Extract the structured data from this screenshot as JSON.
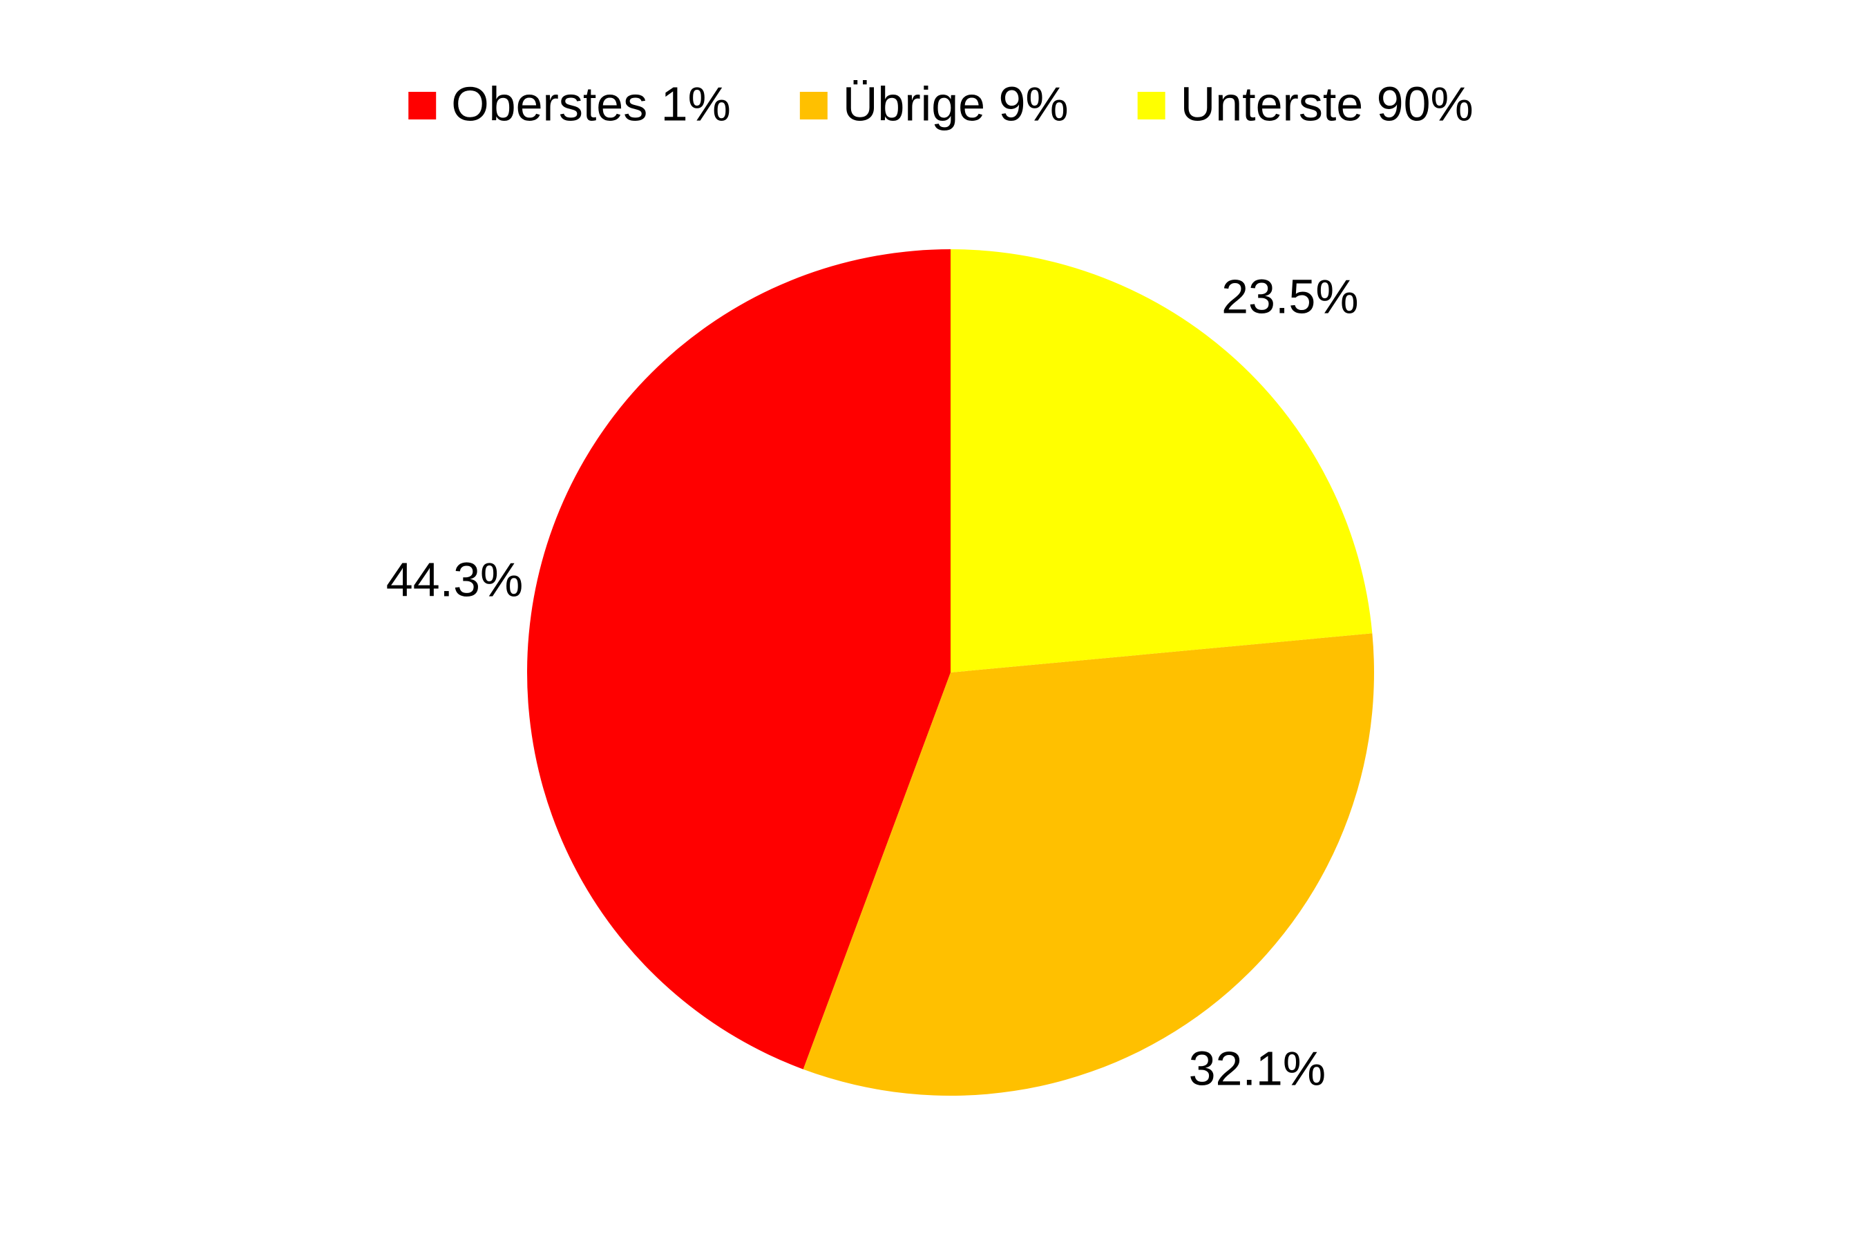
{
  "chart_data": {
    "type": "pie",
    "series": [
      {
        "name": "Oberstes 1%",
        "color": "#ff0000"
      },
      {
        "name": "Übrige 9%",
        "color": "#ffc000"
      },
      {
        "name": "Unterste 90%",
        "color": "#ffff00"
      }
    ],
    "categories": [
      "Oberstes 1%",
      "Übrige 9%",
      "Unterste 90%"
    ],
    "values": [
      44.3,
      32.1,
      23.5
    ],
    "value_labels": [
      "44.3%",
      "32.1%",
      "23.5%"
    ],
    "legend": "top"
  }
}
